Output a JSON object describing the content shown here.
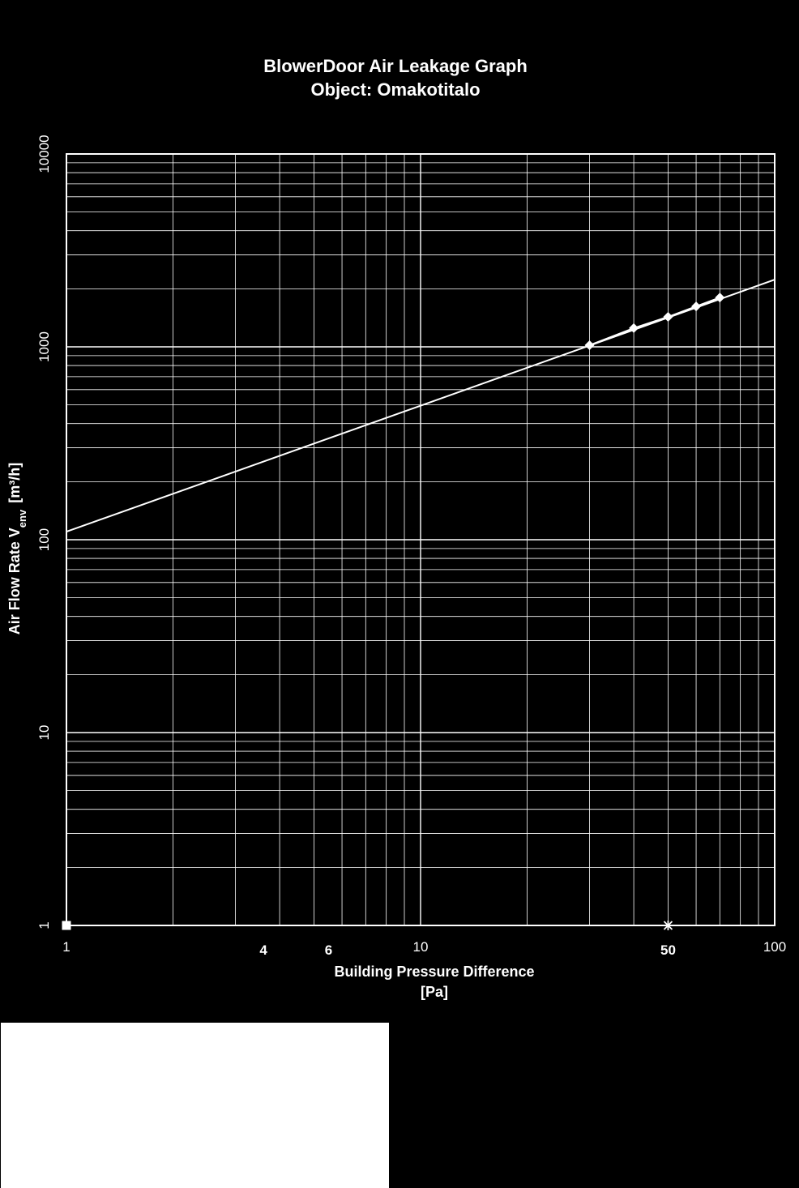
{
  "chart_data": {
    "type": "line",
    "title": "BlowerDoor Air Leakage Graph",
    "subtitle": "Object: Omakotitalo",
    "xlabel": "Building Pressure Difference",
    "xlabel_unit": "[Pa]",
    "ylabel": "Air Flow Rate V",
    "ylabel_sub": "env",
    "ylabel_unit": "[m³/h]",
    "x_scale": "log",
    "y_scale": "log",
    "xlim": [
      1,
      100
    ],
    "ylim": [
      1,
      10000
    ],
    "grid": true,
    "x_ticks": [
      {
        "value": 1,
        "label": "1",
        "bold": false
      },
      {
        "value": 10,
        "label": "10",
        "bold": false
      },
      {
        "value": 100,
        "label": "100",
        "bold": false
      }
    ],
    "x_extra_labels": [
      {
        "value": 3.6,
        "label": "4"
      },
      {
        "value": 5.5,
        "label": "6"
      },
      {
        "value": 50,
        "label": "50"
      }
    ],
    "y_ticks": [
      {
        "value": 1,
        "label": "1"
      },
      {
        "value": 10,
        "label": "10"
      },
      {
        "value": 100,
        "label": "100"
      },
      {
        "value": 1000,
        "label": "1000"
      },
      {
        "value": 10000,
        "label": "10000"
      }
    ],
    "series": [
      {
        "kind": "fit-line",
        "x": [
          1,
          100
        ],
        "y": [
          110,
          2230
        ],
        "color": "#ffffff"
      },
      {
        "kind": "measured",
        "marker": "diamond",
        "x": [
          30,
          40,
          50,
          60,
          70
        ],
        "y": [
          1020,
          1250,
          1430,
          1620,
          1800
        ],
        "color": "#ffffff"
      },
      {
        "kind": "marker-square",
        "marker": "square",
        "x": [
          1
        ],
        "y": [
          1
        ],
        "color": "#ffffff"
      },
      {
        "kind": "marker-star",
        "marker": "star",
        "x": [
          50
        ],
        "y": [
          1
        ],
        "color": "#ffffff"
      }
    ]
  }
}
